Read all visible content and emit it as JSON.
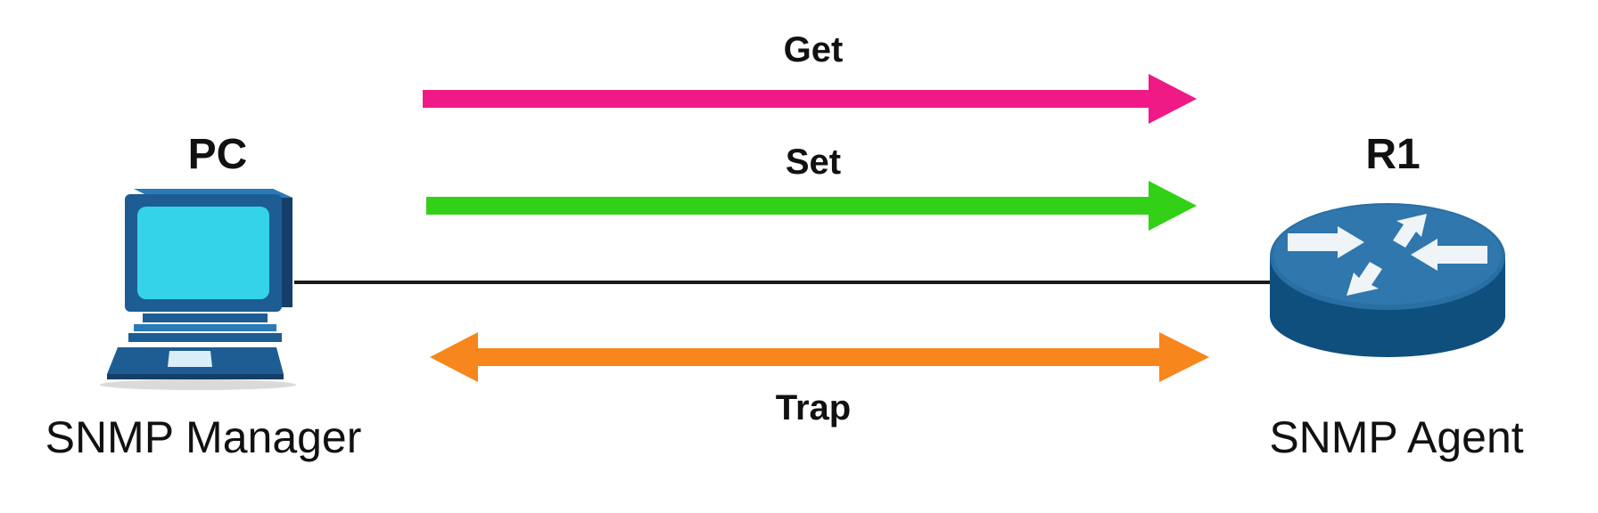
{
  "manager": {
    "title": "PC",
    "role": "SNMP Manager"
  },
  "agent": {
    "title": "R1",
    "role": "SNMP Agent"
  },
  "messages": [
    {
      "label": "Get",
      "direction": "manager-to-agent",
      "color": "#ef1a86"
    },
    {
      "label": "Set",
      "direction": "manager-to-agent",
      "color": "#33d018"
    },
    {
      "label": "Trap",
      "direction": "bidirectional",
      "color": "#f7861c"
    }
  ],
  "colors": {
    "link": "#1a1a1a",
    "pc_screen": "#34d3ea",
    "pc_body": "#1d5d94",
    "router_body": "#0e4f7e",
    "router_top": "#2a6fa3"
  }
}
